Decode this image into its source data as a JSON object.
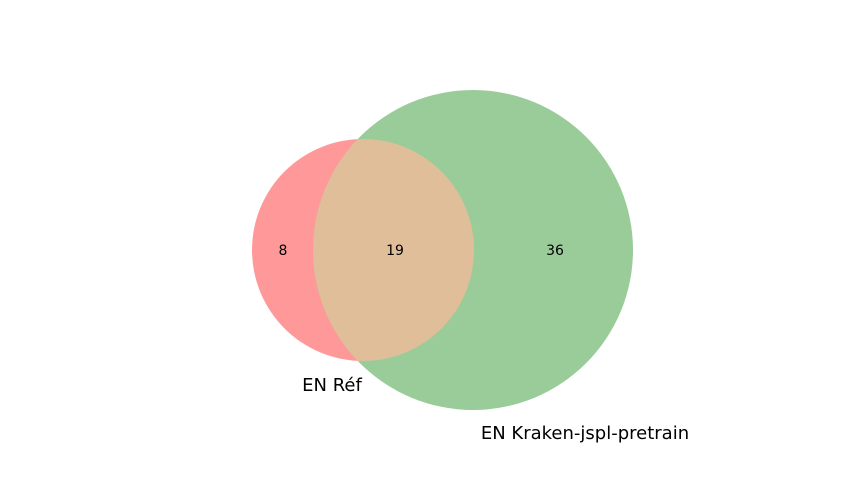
{
  "chart_data": {
    "type": "venn",
    "sets": [
      {
        "name": "EN Réf",
        "color": "#ff9999"
      },
      {
        "name": "EN Kraken-jspl-pretrain",
        "color": "#99cc99"
      }
    ],
    "regions": {
      "only_a": "8",
      "intersection": "19",
      "only_b": "36"
    },
    "intersection_color": "#e0be99"
  }
}
